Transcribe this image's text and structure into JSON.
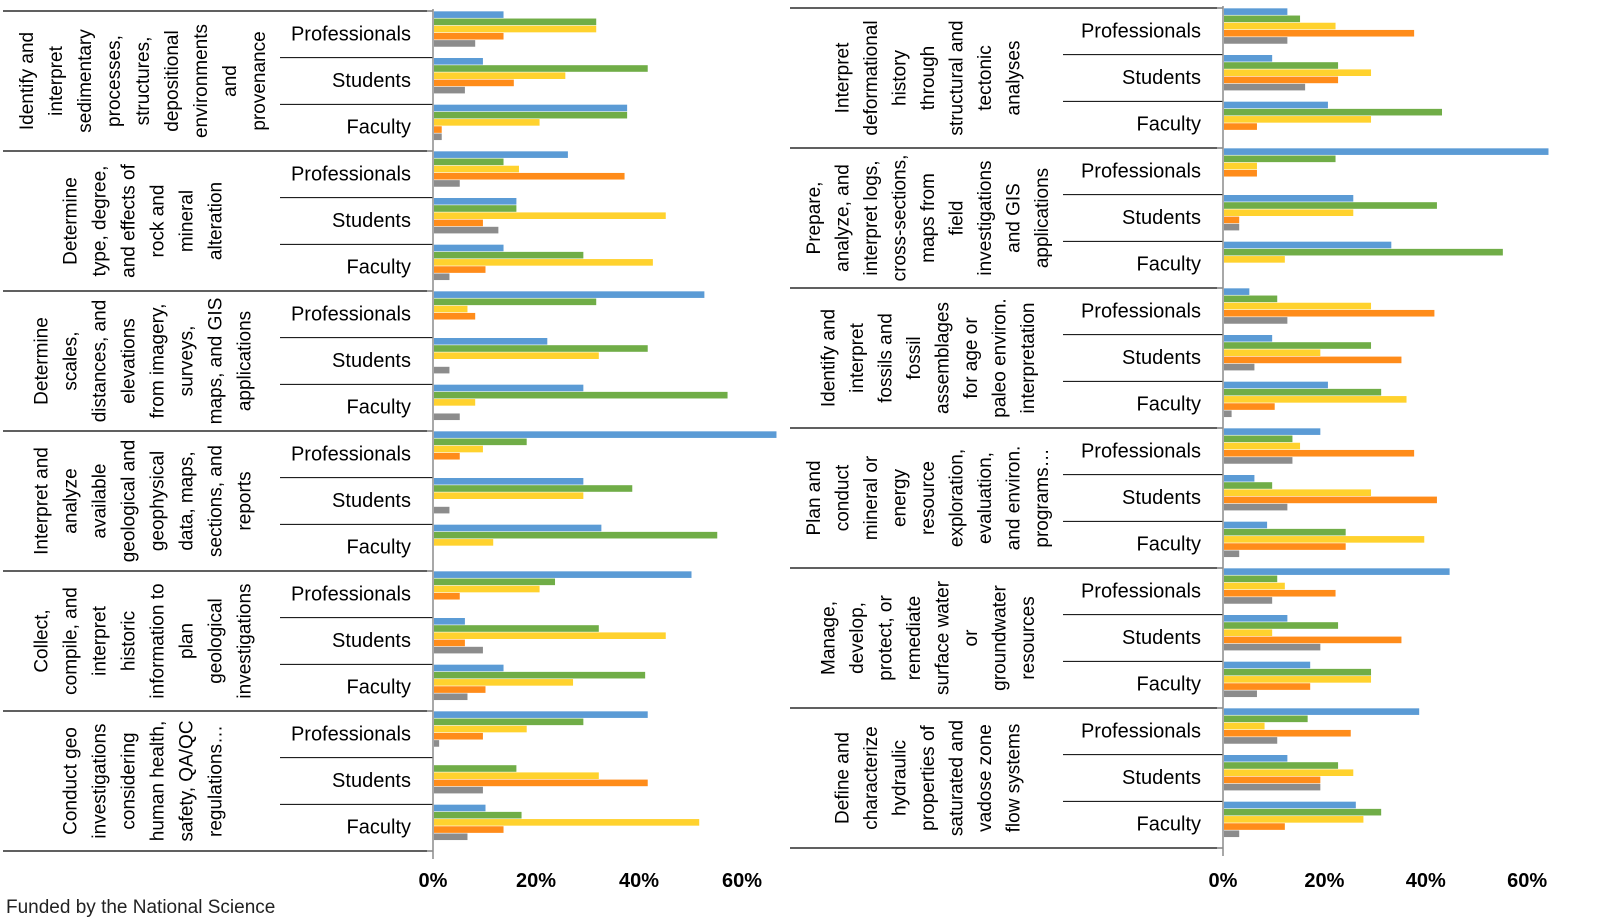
{
  "footer_text": "Funded by the National Science",
  "group_labels": [
    "Professionals",
    "Students",
    "Faculty"
  ],
  "x_ticks": [
    "0%",
    "20%",
    "40%",
    "60%"
  ],
  "colors": {
    "series1": "#5B9BD5",
    "series2": "#70AD47",
    "series3": "#FFD22E",
    "series4": "#FF8C1A",
    "series5": "#8C8C8C",
    "axis": "#8C8C8C"
  },
  "chart_data": [
    {
      "type": "bar",
      "orientation": "horizontal",
      "xlim": [
        0,
        65
      ],
      "x_ticks": [
        0,
        20,
        40,
        60
      ],
      "series_count": 5,
      "panels": [
        {
          "label": [
            "Identify and",
            "interpret",
            "sedimentary",
            "processes,",
            "structures,",
            "depositional",
            "environments",
            "and",
            "provenance"
          ],
          "groups": [
            {
              "name": "Professionals",
              "values": [
                13.5,
                31.5,
                31.5,
                13.5,
                8
              ]
            },
            {
              "name": "Students",
              "values": [
                9.5,
                41.5,
                25.5,
                15.5,
                6
              ]
            },
            {
              "name": "Faculty",
              "values": [
                37.5,
                37.5,
                20.5,
                1.5,
                1.5
              ]
            }
          ]
        },
        {
          "label": [
            "Determine",
            "type, degree,",
            "and effects of",
            "rock and",
            "mineral",
            "alteration"
          ],
          "groups": [
            {
              "name": "Professionals",
              "values": [
                26,
                13.5,
                16.5,
                37,
                5
              ]
            },
            {
              "name": "Students",
              "values": [
                16,
                16,
                45,
                9.5,
                12.5
              ]
            },
            {
              "name": "Faculty",
              "values": [
                13.5,
                29,
                42.5,
                10,
                3
              ]
            }
          ]
        },
        {
          "label": [
            "Determine",
            "scales,",
            "distances, and",
            "elevations",
            "from imagery,",
            "surveys,",
            "maps, and GIS",
            "applications"
          ],
          "groups": [
            {
              "name": "Professionals",
              "values": [
                52.5,
                31.5,
                6.5,
                8,
                0
              ]
            },
            {
              "name": "Students",
              "values": [
                22,
                41.5,
                32,
                0,
                3
              ]
            },
            {
              "name": "Faculty",
              "values": [
                29,
                57,
                8,
                0,
                5
              ]
            }
          ]
        },
        {
          "label": [
            "Interpret and",
            "analyze",
            "available",
            "geological and",
            "geophysical",
            "data, maps,",
            "sections, and",
            "reports"
          ],
          "groups": [
            {
              "name": "Professionals",
              "values": [
                66.5,
                18,
                9.5,
                5,
                0
              ]
            },
            {
              "name": "Students",
              "values": [
                29,
                38.5,
                29,
                0,
                3
              ]
            },
            {
              "name": "Faculty",
              "values": [
                32.5,
                55,
                11.5,
                0,
                0
              ]
            }
          ]
        },
        {
          "label": [
            "Collect,",
            "compile, and",
            "interpret",
            "historic",
            "information to",
            "plan",
            "geological",
            "investigations"
          ],
          "groups": [
            {
              "name": "Professionals",
              "values": [
                50,
                23.5,
                20.5,
                5,
                0
              ]
            },
            {
              "name": "Students",
              "values": [
                6,
                32,
                45,
                6,
                9.5
              ]
            },
            {
              "name": "Faculty",
              "values": [
                13.5,
                41,
                27,
                10,
                6.5
              ]
            }
          ]
        },
        {
          "label": [
            "Conduct geo",
            "investigations",
            "considering",
            "human health,",
            "safety, QA/QC",
            "regulations…"
          ],
          "groups": [
            {
              "name": "Professionals",
              "values": [
                41.5,
                29,
                18,
                9.5,
                1
              ]
            },
            {
              "name": "Students",
              "values": [
                0,
                16,
                32,
                41.5,
                9.5
              ]
            },
            {
              "name": "Faculty",
              "values": [
                10,
                17,
                51.5,
                13.5,
                6.5
              ]
            }
          ]
        }
      ]
    },
    {
      "type": "bar",
      "orientation": "horizontal",
      "xlim": [
        0,
        65
      ],
      "x_ticks": [
        0,
        20,
        40,
        60
      ],
      "series_count": 5,
      "panels": [
        {
          "label": [
            "Interpret",
            "deformational",
            "history",
            "through",
            "structural and",
            "tectonic",
            "analyses"
          ],
          "groups": [
            {
              "name": "Professionals",
              "values": [
                12.5,
                15,
                22,
                37.5,
                12.5
              ]
            },
            {
              "name": "Students",
              "values": [
                9.5,
                22.5,
                29,
                22.5,
                16
              ]
            },
            {
              "name": "Faculty",
              "values": [
                20.5,
                43,
                29,
                6.5,
                0
              ]
            }
          ]
        },
        {
          "label": [
            "Prepare,",
            "analyze, and",
            "interpret logs,",
            "cross-sections,",
            "maps from",
            "field",
            "investigations",
            "and GIS",
            "applications"
          ],
          "groups": [
            {
              "name": "Professionals",
              "values": [
                64,
                22,
                6.5,
                6.5,
                0
              ]
            },
            {
              "name": "Students",
              "values": [
                25.5,
                42,
                25.5,
                3,
                3
              ]
            },
            {
              "name": "Faculty",
              "values": [
                33,
                55,
                12,
                0,
                0
              ]
            }
          ]
        },
        {
          "label": [
            "Identify and",
            "interpret",
            "fossils and",
            "fossil",
            "assemblages",
            "for age or",
            "paleo environ.",
            "interpretation"
          ],
          "groups": [
            {
              "name": "Professionals",
              "values": [
                5,
                10.5,
                29,
                41.5,
                12.5
              ]
            },
            {
              "name": "Students",
              "values": [
                9.5,
                29,
                19,
                35,
                6
              ]
            },
            {
              "name": "Faculty",
              "values": [
                20.5,
                31,
                36,
                10,
                1.5
              ]
            }
          ]
        },
        {
          "label": [
            "Plan and",
            "conduct",
            "mineral or",
            "energy",
            "resource",
            "exploration,",
            "evaluation,",
            "and environ.",
            "programs…"
          ],
          "groups": [
            {
              "name": "Professionals",
              "values": [
                19,
                13.5,
                15,
                37.5,
                13.5
              ]
            },
            {
              "name": "Students",
              "values": [
                6,
                9.5,
                29,
                42,
                12.5
              ]
            },
            {
              "name": "Faculty",
              "values": [
                8.5,
                24,
                39.5,
                24,
                3
              ]
            }
          ]
        },
        {
          "label": [
            "Manage,",
            "develop,",
            "protect, or",
            "remediate",
            "surface water",
            "or",
            "groundwater",
            "resources"
          ],
          "groups": [
            {
              "name": "Professionals",
              "values": [
                44.5,
                10.5,
                12,
                22,
                9.5
              ]
            },
            {
              "name": "Students",
              "values": [
                12.5,
                22.5,
                9.5,
                35,
                19
              ]
            },
            {
              "name": "Faculty",
              "values": [
                17,
                29,
                29,
                17,
                6.5
              ]
            }
          ]
        },
        {
          "label": [
            "Define and",
            "characterize",
            "hydraulic",
            "properties of",
            "saturated and",
            "vadose zone",
            "flow systems"
          ],
          "groups": [
            {
              "name": "Professionals",
              "values": [
                38.5,
                16.5,
                8,
                25,
                10.5
              ]
            },
            {
              "name": "Students",
              "values": [
                12.5,
                22.5,
                25.5,
                19,
                19
              ]
            },
            {
              "name": "Faculty",
              "values": [
                26,
                31,
                27.5,
                12,
                3
              ]
            }
          ]
        }
      ]
    }
  ]
}
